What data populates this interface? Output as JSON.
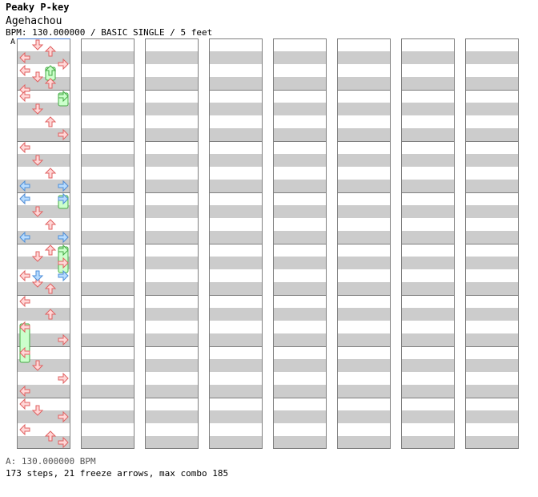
{
  "header": {
    "artist": "Peaky P-key",
    "title": "Agehachou",
    "info": "BPM: 130.000000 / BASIC SINGLE / 5 feet"
  },
  "bpm_marker": "A",
  "footer": {
    "bpm_line": "A: 130.000000 BPM",
    "stats_line": "173 steps, 21 freeze arrows, max combo 185"
  },
  "colors": {
    "stripe": "#cccccc",
    "column_border": "#7f7f7f",
    "tap_fill": "#ffd8d8",
    "tap_stroke": "#e06060",
    "blue_fill": "#b8dcff",
    "blue_stroke": "#4c8ed8",
    "freeze_fill": "#ccffcc",
    "freeze_stroke": "#44aa44",
    "bpm_line": "#4477cc"
  },
  "chart_layout": {
    "columns": 8,
    "measures_per_column": 8,
    "beats_per_measure": 4,
    "lanes": [
      "left",
      "down",
      "up",
      "right"
    ],
    "bpm_changes": [
      {
        "beat": 0,
        "label": "A",
        "bpm": 130.0
      }
    ]
  },
  "notes": [
    {
      "b": 16,
      "l": 2
    },
    {
      "b": 16.5,
      "l": 1
    },
    {
      "b": 17,
      "l": 3
    },
    {
      "b": 18,
      "l": 0
    },
    {
      "b": 18.5,
      "l": 1
    },
    {
      "b": 19,
      "l": 2
    },
    {
      "b": 20,
      "l": 0
    },
    {
      "b": 21,
      "l": 2
    },
    {
      "b": 22,
      "l": 0
    },
    {
      "b": 23,
      "l": 3
    },
    {
      "b": 24,
      "l": 0
    },
    {
      "b": 25,
      "l": 1
    },
    {
      "b": 26,
      "l": 3
    },
    {
      "b": 27,
      "l": 0
    },
    {
      "b": 28,
      "l": 0
    },
    {
      "b": 28.5,
      "l": 1
    },
    {
      "b": 29,
      "l": 3
    },
    {
      "b": 30,
      "l": 0
    },
    {
      "b": 30.5,
      "l": 2
    },
    {
      "b": 31,
      "l": 3
    },
    {
      "b": 0,
      "l": 1
    },
    {
      "b": 0.5,
      "l": 2
    },
    {
      "b": 1,
      "l": 0
    },
    {
      "b": 1.5,
      "l": 3
    },
    {
      "b": 2,
      "l": 0
    },
    {
      "b": 2.5,
      "l": 1
    },
    {
      "b": 3,
      "l": 2
    },
    {
      "b": 3.5,
      "l": 0
    },
    {
      "b": 4,
      "l": 0
    },
    {
      "b": 5,
      "l": 1
    },
    {
      "b": 6,
      "l": 2
    },
    {
      "b": 7,
      "l": 3
    },
    {
      "b": 8,
      "l": 0
    },
    {
      "b": 9,
      "l": 1
    },
    {
      "b": 10,
      "l": 2
    },
    {
      "b": 11,
      "l": 3
    },
    {
      "b": 12,
      "l": 0
    },
    {
      "b": 13,
      "l": 1
    },
    {
      "b": 14,
      "l": 2
    },
    {
      "b": 15,
      "l": 3
    }
  ],
  "blue_notes": [
    {
      "b": 11,
      "l": 0
    },
    {
      "b": 11,
      "l": 3
    },
    {
      "b": 15,
      "l": 0
    },
    {
      "b": 15,
      "l": 3
    },
    {
      "b": 12,
      "l": 0
    },
    {
      "b": 12,
      "l": 3
    },
    {
      "b": 18,
      "l": 1
    },
    {
      "b": 18,
      "l": 3
    }
  ],
  "freezes": [
    {
      "b": 16,
      "l": 3,
      "len": 2
    },
    {
      "b": 2,
      "l": 2,
      "len": 1
    },
    {
      "b": 4,
      "l": 3,
      "len": 1
    },
    {
      "b": 12,
      "l": 3,
      "len": 1
    },
    {
      "b": 22,
      "l": 0,
      "len": 3
    }
  ]
}
